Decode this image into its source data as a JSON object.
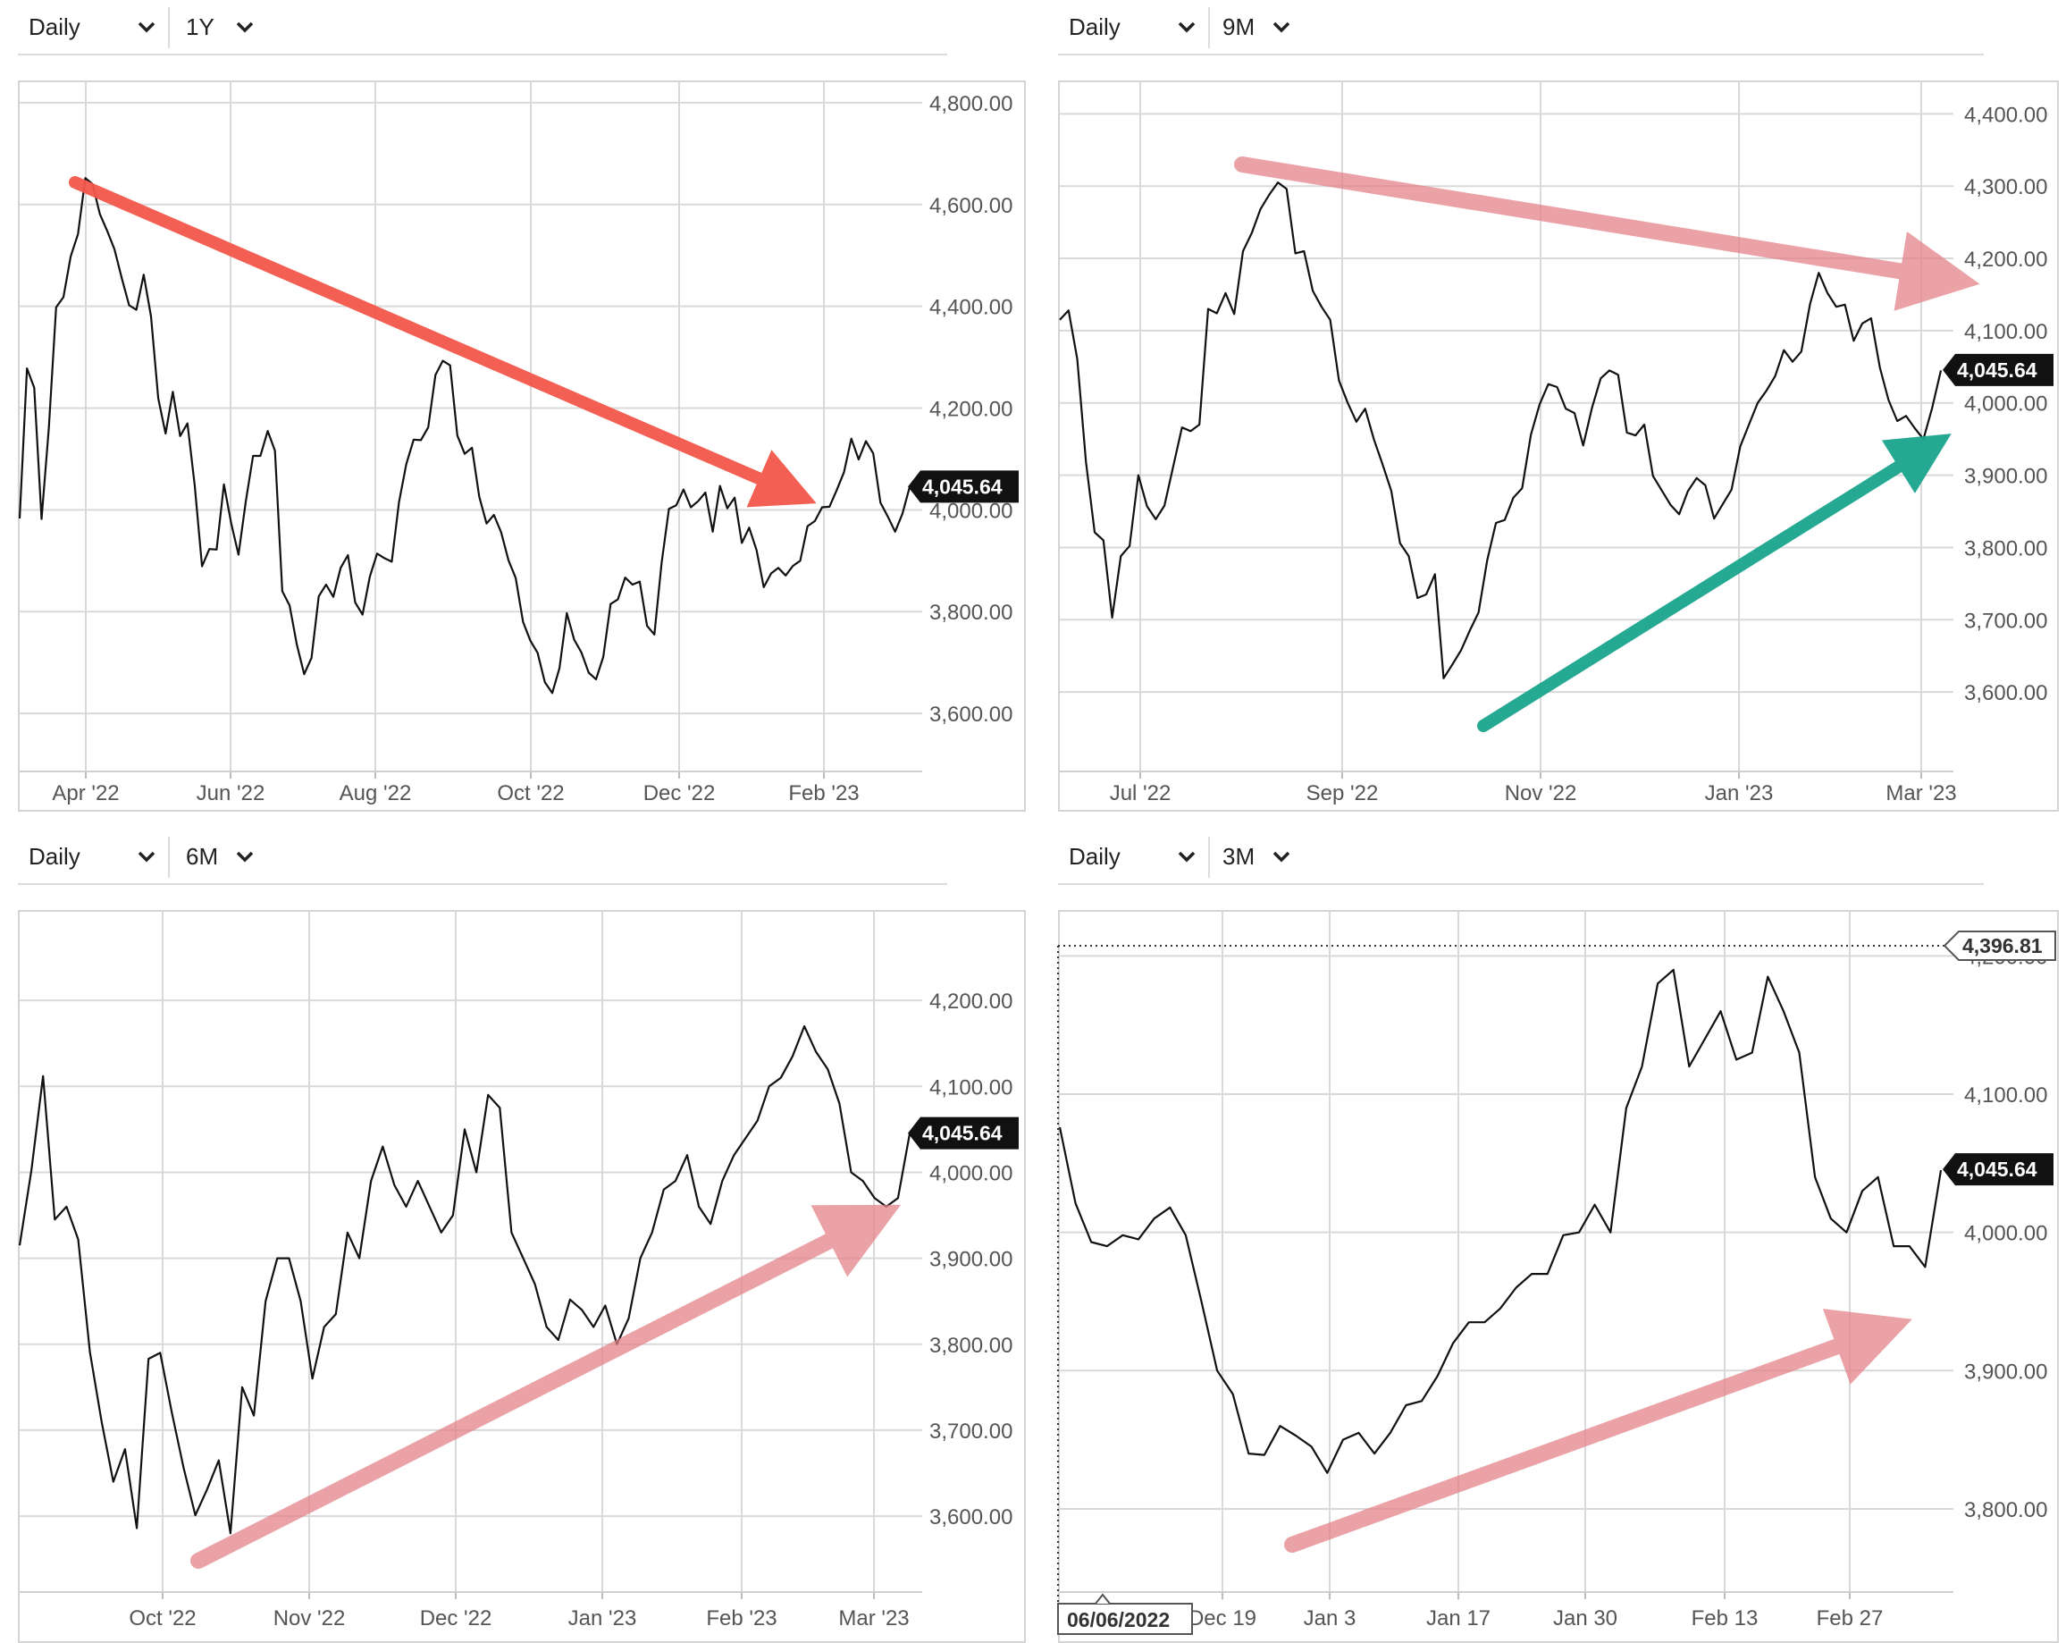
{
  "colors": {
    "grid": "#d9d9d9",
    "line": "#111111",
    "badge": "#111111",
    "arrow_red": "#f4574a",
    "arrow_pink": "#e3838a",
    "arrow_teal": "#1aa58e"
  },
  "panels": [
    {
      "interval": "Daily",
      "range": "1Y",
      "chart_data": {
        "type": "line",
        "x_ticks": [
          "Apr '22",
          "Jun '22",
          "Aug '22",
          "Oct '22",
          "Dec '22",
          "Feb '23"
        ],
        "y_ticks": [
          "4,800.00",
          "4,600.00",
          "4,400.00",
          "4,200.00",
          "4,000.00",
          "3,800.00",
          "3,600.00"
        ],
        "ylim": [
          3500,
          4835
        ],
        "last_price": "4,045.64",
        "series": [
          {
            "values": [
              3983,
              4278,
              4240,
              3982,
              4162,
              4398,
              4418,
              4498,
              4542,
              4652,
              4640,
              4581,
              4548,
              4512,
              4455,
              4402,
              4393,
              4462,
              4380,
              4219,
              4150,
              4232,
              4145,
              4170,
              4048,
              3889,
              3923,
              3922,
              4050,
              3973,
              3912,
              4017,
              4106,
              4106,
              4155,
              4116,
              3840,
              3812,
              3735,
              3677,
              3709,
              3830,
              3853,
              3829,
              3886,
              3911,
              3818,
              3794,
              3869,
              3914,
              3905,
              3898,
              4015,
              4090,
              4138,
              4137,
              4162,
              4265,
              4293,
              4284,
              4146,
              4110,
              4122,
              4026,
              3973,
              3990,
              3956,
              3901,
              3866,
              3780,
              3743,
              3719,
              3661,
              3640,
              3689,
              3797,
              3745,
              3720,
              3680,
              3667,
              3711,
              3815,
              3824,
              3867,
              3853,
              3859,
              3772,
              3755,
              3896,
              4002,
              4009,
              4040,
              4005,
              4017,
              4034,
              3957,
              4047,
              4003,
              4024,
              3935,
              3965,
              3921,
              3848,
              3875,
              3886,
              3871,
              3890,
              3900,
              3968,
              3978,
              4005,
              4006,
              4039,
              4074,
              4140,
              4099,
              4135,
              4111,
              4014,
              3987,
              3957,
              3992,
              4045
            ]
          }
        ]
      }
    },
    {
      "interval": "Daily",
      "range": "9M",
      "chart_data": {
        "type": "line",
        "x_ticks": [
          "Jul '22",
          "Sep '22",
          "Nov '22",
          "Jan '23",
          "Mar '23"
        ],
        "y_ticks": [
          "4,400.00",
          "4,300.00",
          "4,200.00",
          "4,100.00",
          "4,000.00",
          "3,900.00",
          "3,800.00",
          "3,700.00",
          "3,600.00"
        ],
        "ylim": [
          3500,
          4440
        ],
        "last_price": "4,045.64",
        "series": [
          {
            "values": [
              4115,
              4128,
              4061,
              3918,
              3821,
              3810,
              3703,
              3788,
              3802,
              3900,
              3857,
              3839,
              3858,
              3912,
              3966,
              3961,
              3970,
              4130,
              4124,
              4152,
              4123,
              4210,
              4235,
              4268,
              4288,
              4305,
              4296,
              4207,
              4210,
              4155,
              4133,
              4115,
              4031,
              4000,
              3974,
              3992,
              3950,
              3915,
              3878,
              3806,
              3788,
              3730,
              3735,
              3763,
              3619,
              3638,
              3658,
              3685,
              3710,
              3783,
              3834,
              3838,
              3869,
              3882,
              3956,
              3998,
              4026,
              4022,
              3992,
              3986,
              3941,
              3993,
              4034,
              4045,
              4039,
              3959,
              3955,
              3970,
              3899,
              3879,
              3859,
              3846,
              3878,
              3896,
              3886,
              3840,
              3860,
              3880,
              3940,
              3970,
              4000,
              4017,
              4037,
              4073,
              4057,
              4071,
              4137,
              4180,
              4152,
              4133,
              4136,
              4086,
              4110,
              4117,
              4049,
              4004,
              3975,
              3982,
              3965,
              3950,
              3993,
              4045
            ]
          }
        ]
      }
    },
    {
      "interval": "Daily",
      "range": "6M",
      "chart_data": {
        "type": "line",
        "x_ticks": [
          "Oct '22",
          "Nov '22",
          "Dec '22",
          "Jan '23",
          "Feb '23",
          "Mar '23"
        ],
        "y_ticks": [
          "4,200.00",
          "4,100.00",
          "4,000.00",
          "3,900.00",
          "3,800.00",
          "3,700.00",
          "3,600.00"
        ],
        "ylim": [
          3520,
          4300
        ],
        "last_price": "4,045.64",
        "series": [
          {
            "values": [
              3915,
              4002,
              4112,
              3945,
              3960,
              3922,
              3791,
              3710,
              3640,
              3678,
              3586,
              3783,
              3790,
              3720,
              3656,
              3601,
              3631,
              3665,
              3580,
              3750,
              3717,
              3850,
              3900,
              3900,
              3850,
              3760,
              3820,
              3835,
              3930,
              3900,
              3990,
              4030,
              3985,
              3960,
              3990,
              3960,
              3930,
              3950,
              4050,
              4000,
              4090,
              4075,
              3930,
              3900,
              3870,
              3820,
              3805,
              3852,
              3840,
              3820,
              3845,
              3800,
              3830,
              3900,
              3930,
              3980,
              3990,
              4020,
              3960,
              3940,
              3990,
              4020,
              4040,
              4060,
              4100,
              4110,
              4135,
              4170,
              4140,
              4120,
              4080,
              4000,
              3990,
              3970,
              3960,
              3970,
              4045
            ]
          }
        ]
      }
    },
    {
      "interval": "Daily",
      "range": "3M",
      "chart_data": {
        "type": "line",
        "x_ticks": [
          "Dec 19",
          "Jan 3",
          "Jan 17",
          "Jan 30",
          "Feb 13",
          "Feb 27"
        ],
        "y_ticks": [
          "4,200.00",
          "4,100.00",
          "4,000.00",
          "3,900.00",
          "3,800.00"
        ],
        "ylim": [
          3745,
          4230
        ],
        "crosshair_price": "4,396.81",
        "crosshair_date": "06/06/2022",
        "last_price": "4,045.64",
        "series": [
          {
            "values": [
              4076,
              4021,
              3993,
              3990,
              3998,
              3995,
              4010,
              4018,
              3998,
              3950,
              3900,
              3883,
              3840,
              3839,
              3860,
              3853,
              3845,
              3826,
              3850,
              3855,
              3840,
              3855,
              3875,
              3878,
              3896,
              3920,
              3935,
              3935,
              3945,
              3960,
              3970,
              3970,
              3998,
              4000,
              4020,
              4000,
              4090,
              4120,
              4180,
              4190,
              4120,
              4140,
              4160,
              4125,
              4130,
              4185,
              4160,
              4130,
              4040,
              4010,
              4000,
              4030,
              4040,
              3990,
              3990,
              3975,
              4045
            ]
          }
        ]
      }
    }
  ]
}
